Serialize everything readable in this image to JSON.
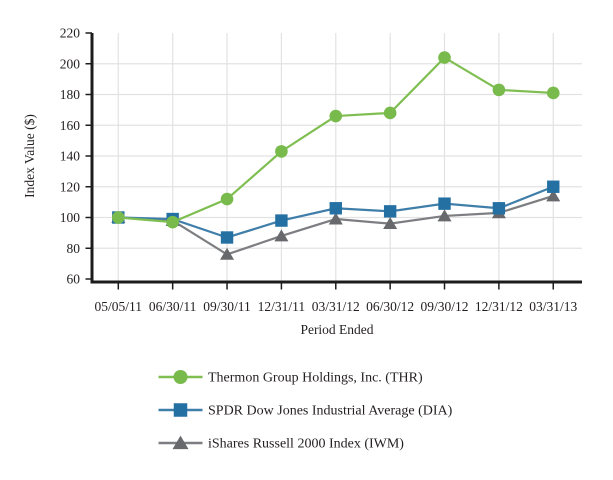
{
  "chart_data": {
    "type": "line",
    "title": "",
    "xlabel": "Period Ended",
    "ylabel": "Index Value ($)",
    "x": [
      "05/05/11",
      "06/30/11",
      "09/30/11",
      "12/31/11",
      "03/31/12",
      "06/30/12",
      "09/30/12",
      "12/31/12",
      "03/31/13"
    ],
    "ylim": [
      60,
      220
    ],
    "yticks": [
      60,
      80,
      100,
      120,
      140,
      160,
      180,
      200,
      220
    ],
    "grid": true,
    "legend_position": "bottom",
    "series": [
      {
        "name": "Thermon Group Holdings, Inc. (THR)",
        "marker": "circle",
        "color": "#79ba4c",
        "line_color": "#7fbe51",
        "values": [
          100,
          97,
          112,
          143,
          166,
          168,
          204,
          183,
          181
        ]
      },
      {
        "name": "SPDR Dow Jones Industrial Average (DIA)",
        "marker": "square",
        "color": "#2470a3",
        "line_color": "#3f7ea9",
        "values": [
          100,
          99,
          87,
          98,
          106,
          104,
          109,
          106,
          120
        ]
      },
      {
        "name": "iShares Russell 2000 Index (IWM)",
        "marker": "triangle",
        "color": "#68696c",
        "line_color": "#7d7e81",
        "values": [
          100,
          98,
          76,
          88,
          99,
          96,
          101,
          103,
          114
        ]
      }
    ]
  },
  "styles": {
    "grid_color": "#e2e2e2",
    "axis_color": "#1c1c1c",
    "text_color": "#231f20",
    "background": "#ffffff"
  }
}
